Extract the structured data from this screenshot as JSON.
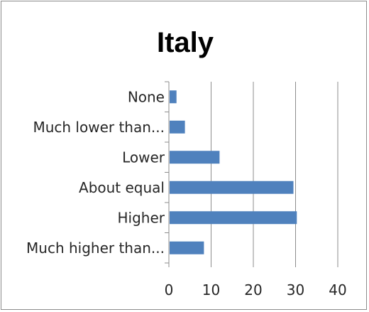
{
  "chart_data": {
    "type": "bar",
    "orientation": "horizontal",
    "title": "Italy",
    "categories": [
      "None",
      "Much lower than...",
      "Lower",
      "About equal",
      "Higher",
      "Much higher than..."
    ],
    "values": [
      1.8,
      3.8,
      12.0,
      29.5,
      30.3,
      8.3
    ],
    "xlim": [
      0,
      40
    ],
    "xticks": [
      "0",
      "10",
      "20",
      "30",
      "40"
    ],
    "grid": true,
    "legend": "none",
    "bar_color": "#4f81bd"
  }
}
